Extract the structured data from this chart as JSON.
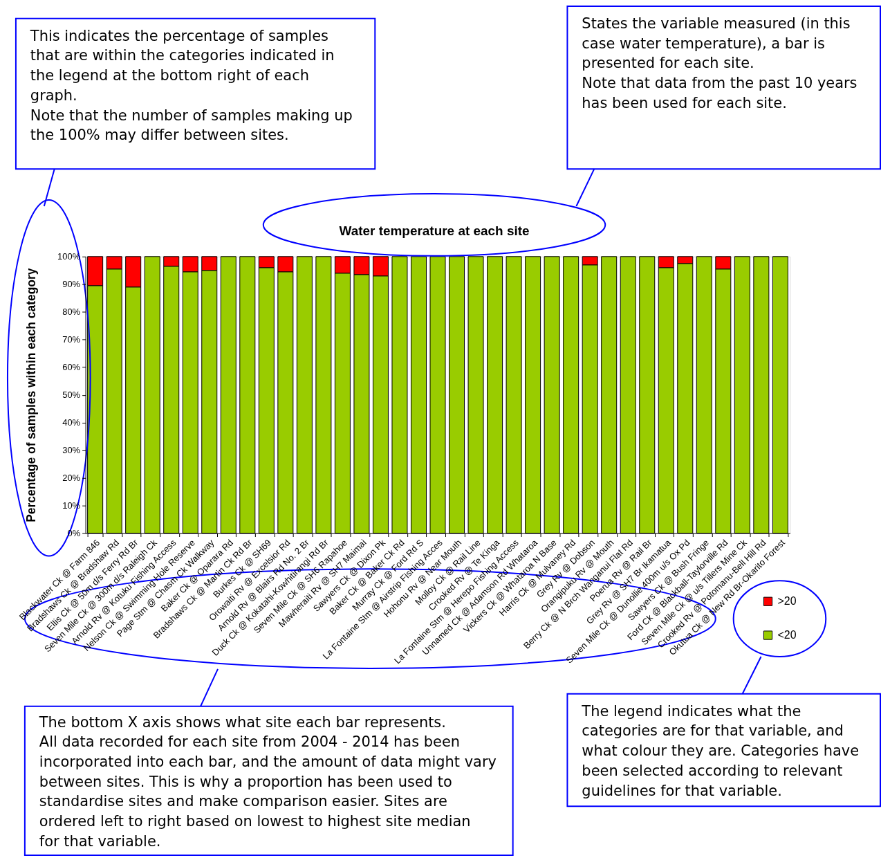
{
  "chart_data": {
    "type": "bar",
    "title": "Water temperature at each site",
    "ylabel": "Percentage of samples within each category",
    "categories": [
      "Blackwater Ck @ Farm 846",
      "Bradshaws Ck @ Bradshaw Rd",
      "Ellis Ck @ 50m d/s Ferry Rd Br",
      "Seven Mile Ck @ 300m d/s Raleigh Ck",
      "Arnold Rv @ Kotuku Fishing Access",
      "Nelson Ck @ Swimming Hole Reserve",
      "Page Stm @ Chasm Ck Walkway",
      "Baker Ck @ Oparara Rd",
      "Bradshaws Ck @ Martin Ck Rd Br",
      "Burkes Ck @ SH69",
      "Orowaiti Rv @ Excelsior Rd",
      "Arnold Rv @ Blairs Rd No. 2 Br",
      "Duck Ck @ Kokatahi-Kowhitirangi Rd Br",
      "Seven Mile Ck @ SH6 Rapahoe",
      "Mawheraiti Rv @ SH7 Maimai",
      "Sawyers Ck @ Dixon Pk",
      "Baker Ck @ Baker Ck Rd",
      "Murray Ck @ Ford Rd S",
      "La Fontaine Stm @ Airstrip Fishing Acces",
      "Hohonu Rv @ Near Mouth",
      "Molloy Ck @ Rail Line",
      "Crooked Rv @ Te Kinga",
      "La Fontaine Stm @ Herepo Fishing Access",
      "Unnamed Ck @ Adamson Rd Whataroa",
      "Vickers Ck @ Whataroa N Base",
      "Harris Ck @ Mulvaney Rd",
      "Grey Rv @ Dobson",
      "Orangipuku Rv @ Mouth",
      "Berry Ck @ N Brch Wanganui Flat Rd",
      "Poerua Rv @ Rail Br",
      "Grey Rv @ SH7 Br Ikamatua",
      "Seven Mile Ck @ Dunollie 400m u/s Ox Pd",
      "Sawyers Ck @ Bush Fringe",
      "Ford Ck @ Blackball-Taylorville Rd",
      "Seven Mile Ck @ u/s Tillers Mine Ck",
      "Crooked Rv @ Potomanu-Bell Hill Rd",
      "Okutua Ck @ New Rd Br-Okarito Forest"
    ],
    "series": [
      {
        "name": "<20",
        "color": "#99cc00",
        "values": [
          89.5,
          95.5,
          89,
          100,
          96.5,
          94.5,
          95,
          100,
          100,
          96,
          94.5,
          100,
          100,
          94,
          93.5,
          93,
          100,
          100,
          100,
          100,
          100,
          100,
          100,
          100,
          100,
          100,
          97,
          100,
          100,
          100,
          96,
          97.5,
          100,
          95.5,
          100,
          100,
          100
        ]
      },
      {
        "name": ">20",
        "color": "#ff0000",
        "values": [
          10.5,
          4.5,
          11,
          0,
          3.5,
          5.5,
          5,
          0,
          0,
          4,
          5.5,
          0,
          0,
          6,
          6.5,
          7,
          0,
          0,
          0,
          0,
          0,
          0,
          0,
          0,
          0,
          0,
          3,
          0,
          0,
          0,
          4,
          2.5,
          0,
          4.5,
          0,
          0,
          0
        ]
      }
    ],
    "stacked": true,
    "ylim": [
      0,
      100
    ],
    "yticks": [
      {
        "value": 0,
        "label": "0%"
      },
      {
        "value": 10,
        "label": "10%"
      },
      {
        "value": 20,
        "label": "20%"
      },
      {
        "value": 30,
        "label": "30%"
      },
      {
        "value": 40,
        "label": "40%"
      },
      {
        "value": 50,
        "label": "50%"
      },
      {
        "value": 60,
        "label": "60%"
      },
      {
        "value": 70,
        "label": "70%"
      },
      {
        "value": 80,
        "label": "80%"
      },
      {
        "value": 90,
        "label": "90%"
      },
      {
        "value": 100,
        "label": "100%"
      }
    ],
    "legend": "bottom right",
    "annotations": [
      "This indicates the percentage of samples that are within the categories indicated in the legend at the bottom right of each graph.\nNote that the number of samples making up the 100% may differ between sites.",
      "States the variable measured (in this case water temperature), a bar is presented for each site.\nNote that data from the past 10 years has been used for each site.",
      "The bottom X axis shows what site each bar represents.\nAll data recorded for each site from 2004 - 2014 has been incorporated into each bar, and the amount of data might vary between sites. This is why a proportion has been used to standardise sites and make comparison easier. Sites are ordered left to right based on lowest to highest site median for that variable.",
      "The legend indicates what the categories are for that variable, and what colour they are. Categories have been selected according to relevant guidelines for that variable."
    ]
  }
}
